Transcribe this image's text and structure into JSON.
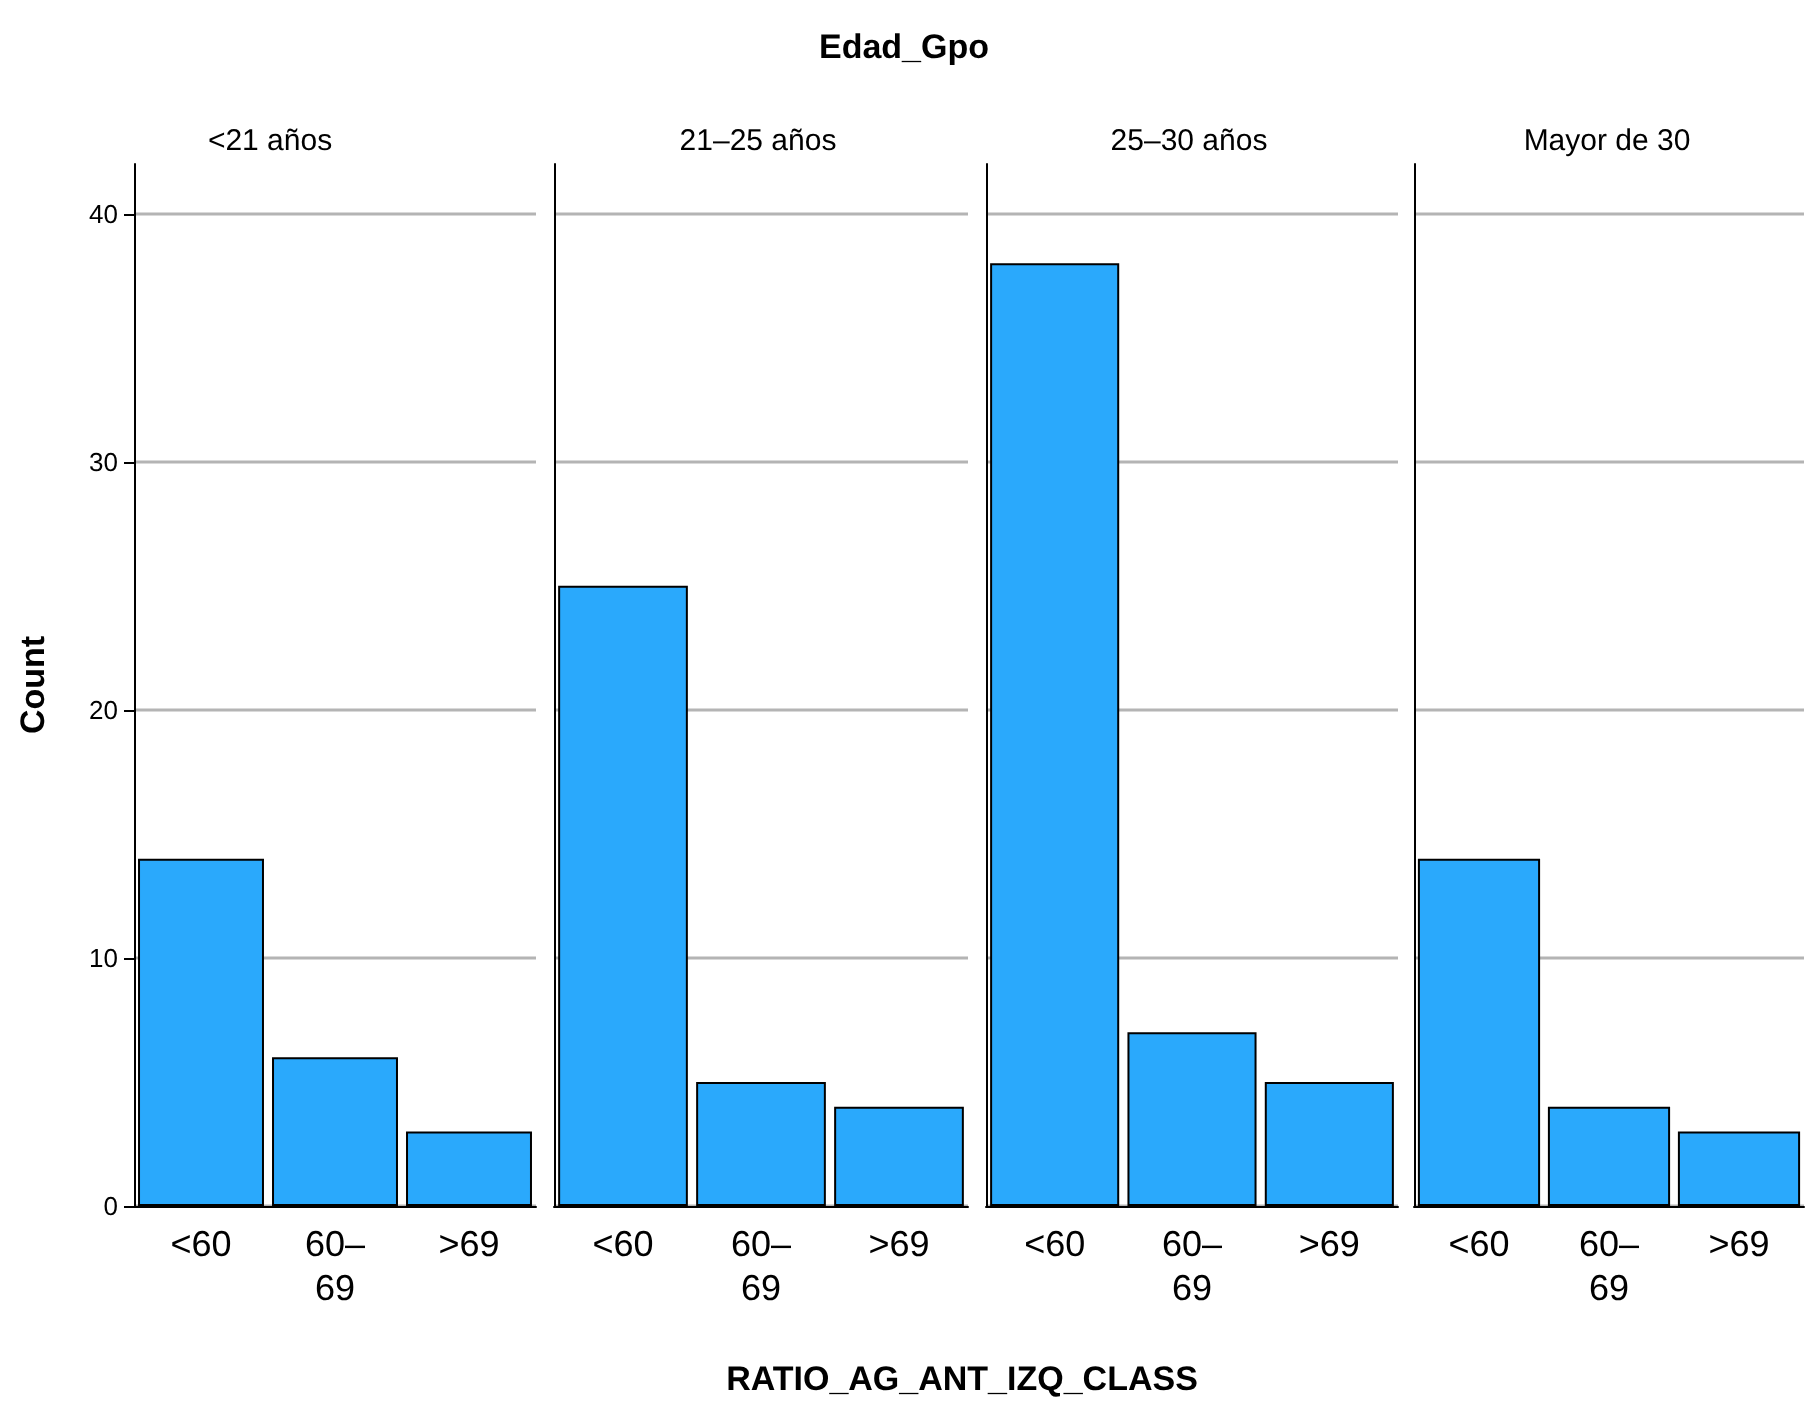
{
  "chart_data": [
    {
      "type": "bar",
      "title": "<21 años",
      "annotations": [
        "Edad_Gpo"
      ],
      "xlabel": "RATIO_AG_ANT_IZQ_CLASS",
      "ylabel": "Count",
      "categories": [
        "<60",
        "60–69",
        ">69"
      ],
      "values": [
        14,
        6,
        3
      ],
      "color": "#2aa9fc",
      "ylim": [
        0,
        42
      ],
      "yticks": [
        0,
        10,
        20,
        30,
        40
      ],
      "grid": "y"
    },
    {
      "type": "bar",
      "title": "21–25 años",
      "categories": [
        "<60",
        "60–69",
        ">69"
      ],
      "values": [
        25,
        5,
        4
      ],
      "color": "#2aa9fc",
      "ylim": [
        0,
        42
      ],
      "yticks": [
        0,
        10,
        20,
        30,
        40
      ],
      "grid": "y",
      "tick_labels": "x"
    },
    {
      "type": "bar",
      "title": "25–30 años",
      "categories": [
        "<60",
        "60–69",
        ">69"
      ],
      "values": [
        38,
        7,
        5
      ],
      "color": "#2aa9fc",
      "ylim": [
        0,
        42
      ],
      "yticks": [
        0,
        10,
        20,
        30,
        40
      ],
      "grid": "y",
      "tick_labels": "x"
    },
    {
      "type": "bar",
      "title": "Mayor de 30",
      "categories": [
        "<60",
        "60–69",
        ">69"
      ],
      "values": [
        14,
        4,
        3
      ],
      "color": "#2aa9fc",
      "ylim": [
        0,
        42
      ],
      "yticks": [
        0,
        10,
        20,
        30,
        40
      ],
      "grid": "y",
      "tick_labels": "x"
    }
  ]
}
